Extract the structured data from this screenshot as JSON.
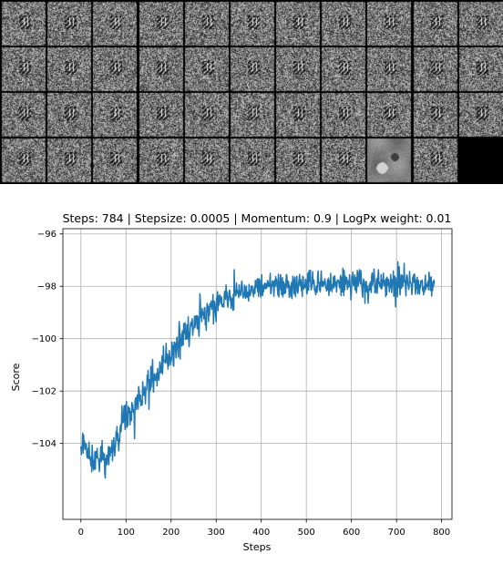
{
  "thumbnail_grid": {
    "rows": 4,
    "cols": 11,
    "tiles": [
      "noise",
      "noise",
      "noise",
      "noise",
      "noise",
      "noise",
      "noise",
      "noise",
      "noise",
      "noise",
      "noise",
      "noise",
      "noise",
      "noise",
      "noise",
      "noise",
      "noise",
      "noise",
      "noise",
      "noise",
      "noise",
      "noise",
      "noise",
      "noise",
      "noise",
      "noise",
      "noise",
      "noise",
      "noise",
      "noise",
      "noise",
      "noise",
      "noise",
      "noise",
      "noise",
      "noise",
      "noise",
      "noise",
      "noise",
      "noise",
      "noise",
      "smooth",
      "noise",
      "empty"
    ],
    "colors": {
      "border": "#000000",
      "noise_mid": "#7a7a7a",
      "smooth_mid": "#8a8a8a"
    }
  },
  "chart_data": {
    "type": "line",
    "title": "Steps: 784 | Stepsize: 0.0005 | Momentum: 0.9 | LogPx weight: 0.01",
    "xlabel": "Steps",
    "ylabel": "Score",
    "xlim": [
      -40,
      823
    ],
    "ylim": [
      -106.9,
      -95.8
    ],
    "xticks": [
      0,
      100,
      200,
      300,
      400,
      500,
      600,
      700,
      800
    ],
    "yticks": [
      -104,
      -102,
      -100,
      -98,
      -96
    ],
    "xtick_labels": [
      "0",
      "100",
      "200",
      "300",
      "400",
      "500",
      "600",
      "700",
      "800"
    ],
    "ytick_labels": [
      "−104",
      "−102",
      "−100",
      "−98",
      "−96"
    ],
    "grid": true,
    "line_color": "#1f77b4",
    "series_anchors": {
      "x": [
        0,
        20,
        40,
        60,
        80,
        100,
        120,
        140,
        160,
        180,
        200,
        220,
        240,
        260,
        280,
        300,
        320,
        340,
        360,
        380,
        400,
        450,
        500,
        550,
        600,
        650,
        700,
        750,
        784
      ],
      "y": [
        -104.1,
        -104.4,
        -104.6,
        -104.5,
        -103.9,
        -103.2,
        -102.5,
        -102.0,
        -101.5,
        -101.0,
        -100.6,
        -100.1,
        -99.6,
        -99.2,
        -99.0,
        -98.7,
        -98.5,
        -98.3,
        -98.2,
        -98.1,
        -98.0,
        -98.0,
        -97.95,
        -97.9,
        -97.9,
        -97.95,
        -97.85,
        -97.9,
        -97.8
      ]
    },
    "series_noise": {
      "x": [
        0,
        60,
        120,
        200,
        300,
        400,
        500,
        600,
        700,
        784
      ],
      "amplitude": [
        0.55,
        0.6,
        0.6,
        0.6,
        0.55,
        0.5,
        0.5,
        0.5,
        0.5,
        0.45
      ]
    },
    "n_steps": 784
  }
}
